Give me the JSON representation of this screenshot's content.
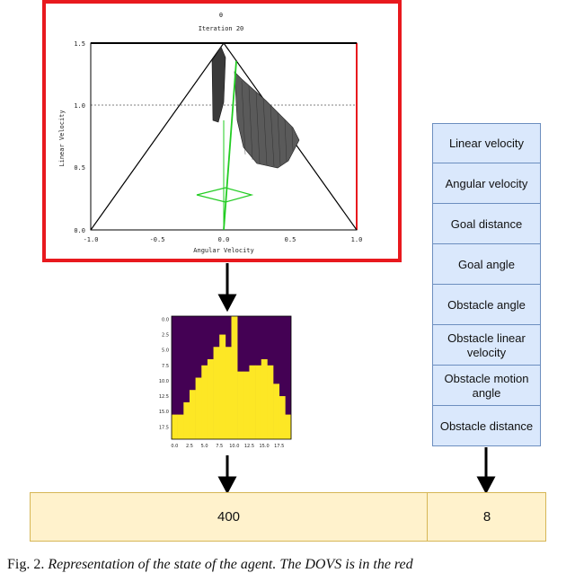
{
  "dovs_plot": {
    "title": "θ",
    "subtitle": "Iteration 20",
    "ylabel": "Linear Velocity",
    "xlabel": "Angular Velocity",
    "x_ticks": [
      "-1.0",
      "-0.5",
      "0.0",
      "0.5",
      "1.0"
    ],
    "y_ticks": [
      "1.5",
      "1.0",
      "0.5",
      "0.0"
    ],
    "frame_color": "#e8191e",
    "free_path_color": "#22cc22",
    "obstacle_color": "#3a3a3a"
  },
  "occupancy_image": {
    "x_ticks": [
      "0.0",
      "2.5",
      "5.0",
      "7.5",
      "10.0",
      "12.5",
      "15.0",
      "17.5"
    ],
    "y_ticks": [
      "0.0",
      "2.5",
      "5.0",
      "7.5",
      "10.0",
      "12.5",
      "15.0",
      "17.5"
    ],
    "background_color": "#440154",
    "free_color": "#fde725",
    "column_free_from_row": [
      16,
      16,
      14,
      12,
      10,
      8,
      7,
      5,
      3,
      5,
      0,
      9,
      9,
      8,
      8,
      7,
      8,
      11,
      13,
      16
    ]
  },
  "features": {
    "items": [
      "Linear velocity",
      "Angular velocity",
      "Goal distance",
      "Goal angle",
      "Obstacle angle",
      "Obstacle linear velocity",
      "Obstacle motion angle",
      "Obstacle distance"
    ],
    "fill_color": "#dae8fc",
    "border_color": "#6c8ebf"
  },
  "output": {
    "left_value": "400",
    "right_value": "8",
    "fill_color": "#fff2cc",
    "border_color": "#d6b656"
  },
  "caption": {
    "label": "Fig. 2.",
    "text": "Representation of the state of the agent. The DOVS is in the red"
  }
}
